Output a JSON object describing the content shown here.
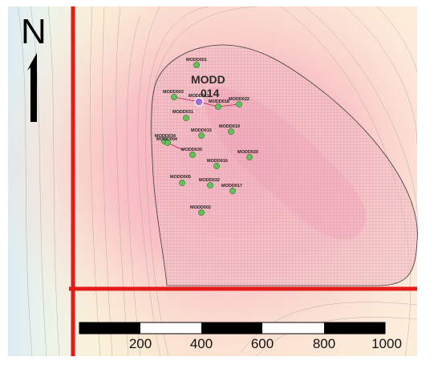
{
  "map": {
    "north_arrow": {
      "letter": "N"
    },
    "highlight_label": {
      "line1": "MODD",
      "line2": "014"
    },
    "wells": [
      {
        "id": "w001",
        "label": "MODD001"
      },
      {
        "id": "w003",
        "label": "MODD003"
      },
      {
        "id": "w011",
        "label": "MODD011"
      },
      {
        "id": "w018",
        "label": "MODD018"
      },
      {
        "id": "w022",
        "label": "MODD022"
      },
      {
        "id": "w031",
        "label": "MODD031"
      },
      {
        "id": "w015",
        "label": "MODD015"
      },
      {
        "id": "w019",
        "label": "MODD019"
      },
      {
        "id": "w034",
        "label": "MODD034"
      },
      {
        "id": "w004",
        "label": "MODD004"
      },
      {
        "id": "w030",
        "label": "MODD030"
      },
      {
        "id": "w020",
        "label": "MODD020"
      },
      {
        "id": "w016",
        "label": "MODD016"
      },
      {
        "id": "w005",
        "label": "MODD005"
      },
      {
        "id": "w032",
        "label": "MODD032"
      },
      {
        "id": "w017",
        "label": "MODD017"
      },
      {
        "id": "w002",
        "label": "MODD002"
      }
    ],
    "scale_bar": {
      "ticks": [
        "200",
        "400",
        "600",
        "800",
        "1000"
      ]
    },
    "colors": {
      "well_fill": "#5fc35a",
      "highlight_well_fill": "#a16fd3",
      "axis_line": "#e51b1b",
      "boundary_fill": "#f7b8c4"
    }
  }
}
